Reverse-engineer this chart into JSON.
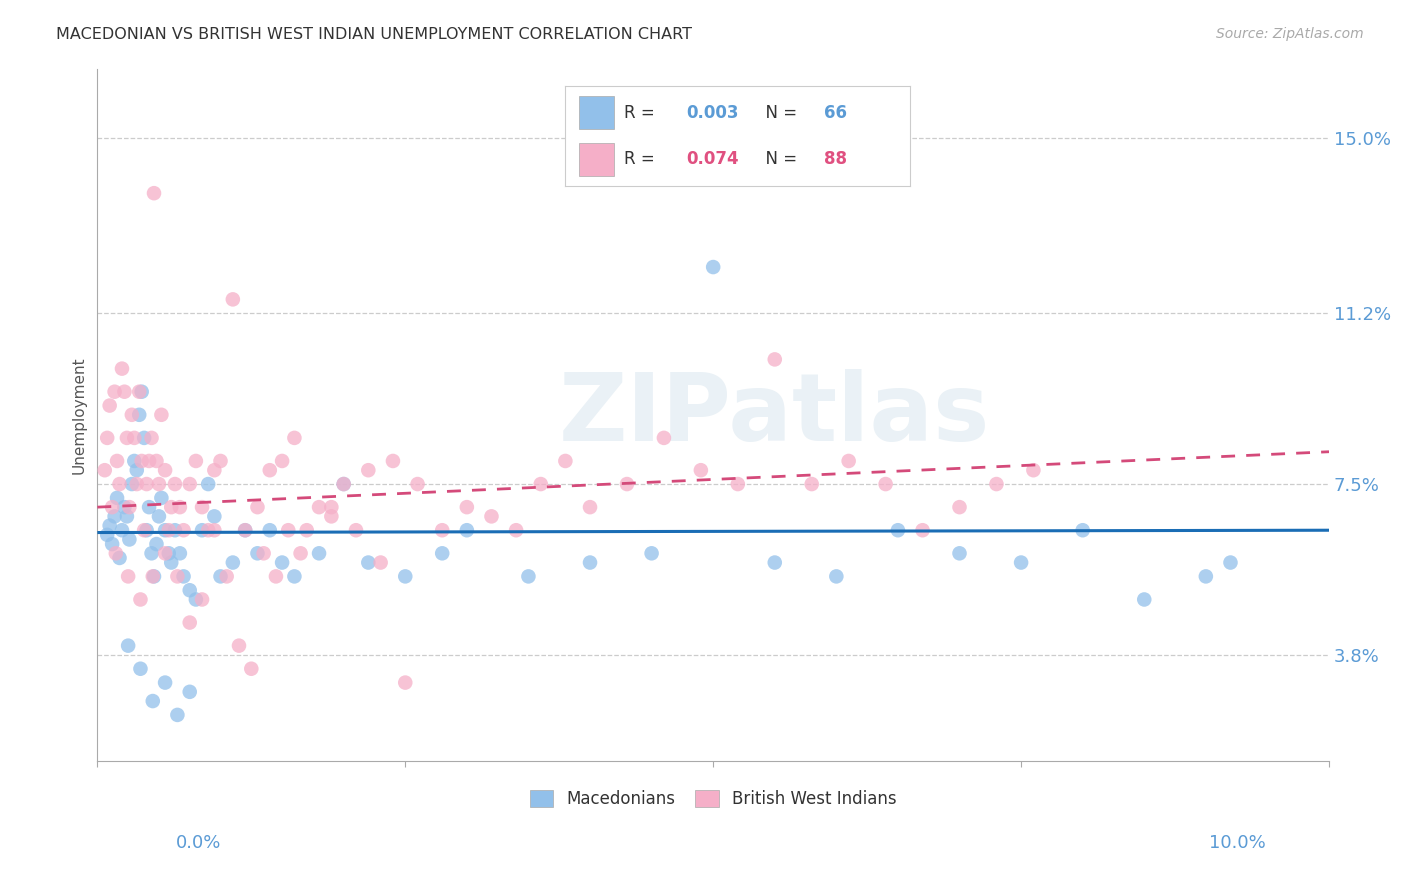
{
  "title": "MACEDONIAN VS BRITISH WEST INDIAN UNEMPLOYMENT CORRELATION CHART",
  "source": "Source: ZipAtlas.com",
  "ylabel": "Unemployment",
  "yticks": [
    3.8,
    7.5,
    11.2,
    15.0
  ],
  "ytick_labels": [
    "3.8%",
    "7.5%",
    "11.2%",
    "15.0%"
  ],
  "xmin": 0.0,
  "xmax": 10.0,
  "ymin": 1.5,
  "ymax": 16.5,
  "macedonian_color": "#92c0ea",
  "british_wi_color": "#f5afc8",
  "macedonian_line_color": "#1a6db5",
  "british_wi_line_color": "#d44a7a",
  "r_mac": "0.003",
  "n_mac": 66,
  "r_bwi": "0.074",
  "n_bwi": 88,
  "watermark": "ZIPatlas",
  "mac_line_y_start": 6.45,
  "mac_line_y_end": 6.5,
  "bwi_line_y_start": 7.0,
  "bwi_line_y_end": 8.2,
  "macedonian_scatter_x": [
    0.08,
    0.1,
    0.12,
    0.14,
    0.16,
    0.18,
    0.2,
    0.22,
    0.24,
    0.26,
    0.28,
    0.3,
    0.32,
    0.34,
    0.36,
    0.38,
    0.4,
    0.42,
    0.44,
    0.46,
    0.48,
    0.5,
    0.52,
    0.55,
    0.58,
    0.6,
    0.63,
    0.67,
    0.7,
    0.75,
    0.8,
    0.85,
    0.9,
    0.95,
    1.0,
    1.1,
    1.2,
    1.3,
    1.4,
    1.5,
    1.6,
    1.8,
    2.0,
    2.2,
    2.5,
    2.8,
    3.0,
    3.5,
    4.0,
    4.5,
    5.0,
    5.5,
    6.0,
    6.5,
    7.0,
    7.5,
    8.0,
    8.5,
    9.0,
    9.2,
    0.25,
    0.35,
    0.45,
    0.55,
    0.65,
    0.75
  ],
  "macedonian_scatter_y": [
    6.4,
    6.6,
    6.2,
    6.8,
    7.2,
    5.9,
    6.5,
    7.0,
    6.8,
    6.3,
    7.5,
    8.0,
    7.8,
    9.0,
    9.5,
    8.5,
    6.5,
    7.0,
    6.0,
    5.5,
    6.2,
    6.8,
    7.2,
    6.5,
    6.0,
    5.8,
    6.5,
    6.0,
    5.5,
    5.2,
    5.0,
    6.5,
    7.5,
    6.8,
    5.5,
    5.8,
    6.5,
    6.0,
    6.5,
    5.8,
    5.5,
    6.0,
    7.5,
    5.8,
    5.5,
    6.0,
    6.5,
    5.5,
    5.8,
    6.0,
    12.2,
    5.8,
    5.5,
    6.5,
    6.0,
    5.8,
    6.5,
    5.0,
    5.5,
    5.8,
    4.0,
    3.5,
    2.8,
    3.2,
    2.5,
    3.0
  ],
  "british_wi_scatter_x": [
    0.06,
    0.08,
    0.1,
    0.12,
    0.14,
    0.16,
    0.18,
    0.2,
    0.22,
    0.24,
    0.26,
    0.28,
    0.3,
    0.32,
    0.34,
    0.36,
    0.38,
    0.4,
    0.42,
    0.44,
    0.46,
    0.48,
    0.5,
    0.52,
    0.55,
    0.58,
    0.6,
    0.63,
    0.67,
    0.7,
    0.75,
    0.8,
    0.85,
    0.9,
    0.95,
    1.0,
    1.1,
    1.2,
    1.3,
    1.4,
    1.5,
    1.6,
    1.7,
    1.8,
    1.9,
    2.0,
    2.2,
    2.4,
    2.6,
    2.8,
    3.0,
    3.2,
    3.4,
    3.6,
    3.8,
    4.0,
    4.3,
    4.6,
    4.9,
    5.2,
    5.5,
    5.8,
    6.1,
    6.4,
    6.7,
    7.0,
    7.3,
    7.6,
    0.15,
    0.25,
    0.35,
    0.45,
    0.55,
    0.65,
    0.75,
    0.85,
    0.95,
    1.05,
    1.15,
    1.25,
    1.35,
    1.45,
    1.55,
    1.65,
    1.9,
    2.1,
    2.3,
    2.5
  ],
  "british_wi_scatter_y": [
    7.8,
    8.5,
    9.2,
    7.0,
    9.5,
    8.0,
    7.5,
    10.0,
    9.5,
    8.5,
    7.0,
    9.0,
    8.5,
    7.5,
    9.5,
    8.0,
    6.5,
    7.5,
    8.0,
    8.5,
    13.8,
    8.0,
    7.5,
    9.0,
    7.8,
    6.5,
    7.0,
    7.5,
    7.0,
    6.5,
    7.5,
    8.0,
    7.0,
    6.5,
    7.8,
    8.0,
    11.5,
    6.5,
    7.0,
    7.8,
    8.0,
    8.5,
    6.5,
    7.0,
    6.8,
    7.5,
    7.8,
    8.0,
    7.5,
    6.5,
    7.0,
    6.8,
    6.5,
    7.5,
    8.0,
    7.0,
    7.5,
    8.5,
    7.8,
    7.5,
    10.2,
    7.5,
    8.0,
    7.5,
    6.5,
    7.0,
    7.5,
    7.8,
    6.0,
    5.5,
    5.0,
    5.5,
    6.0,
    5.5,
    4.5,
    5.0,
    6.5,
    5.5,
    4.0,
    3.5,
    6.0,
    5.5,
    6.5,
    6.0,
    7.0,
    6.5,
    5.8,
    3.2
  ]
}
